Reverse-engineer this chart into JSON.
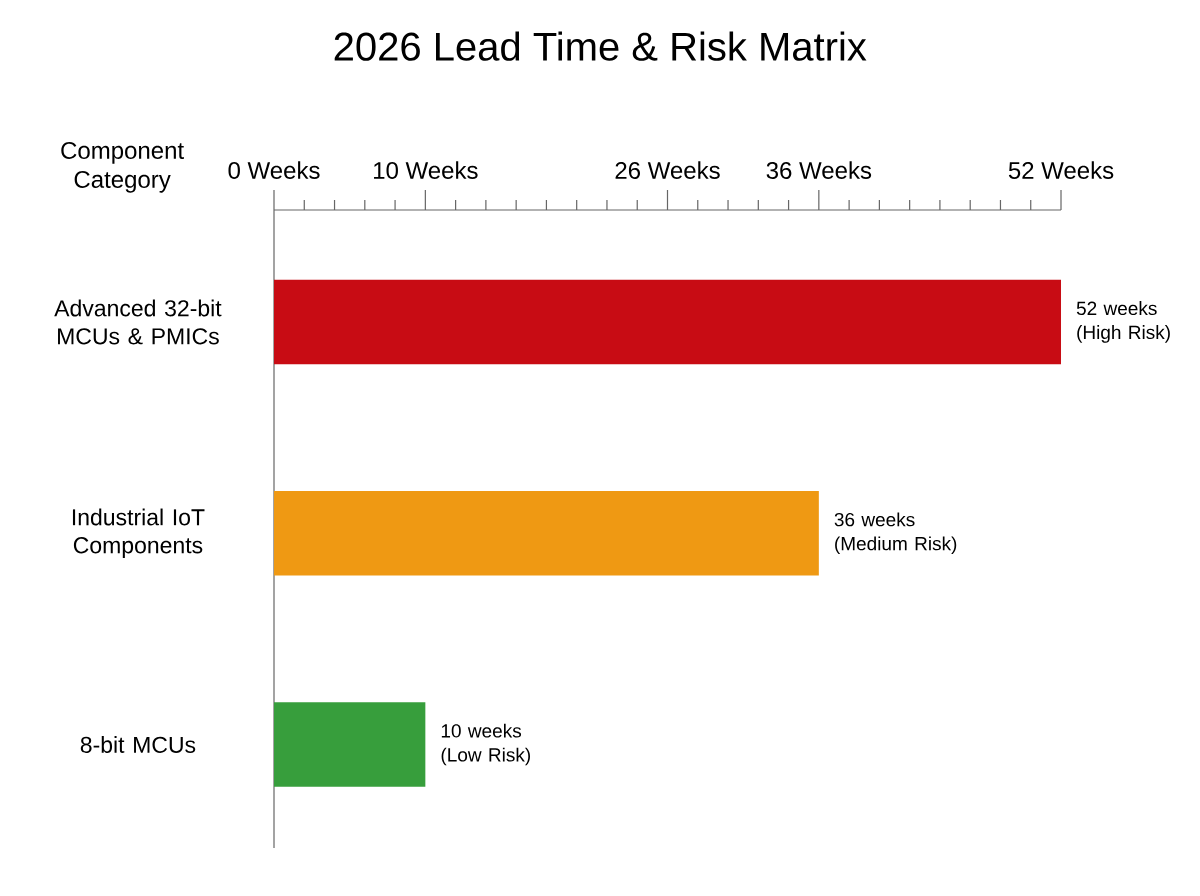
{
  "chart_data": {
    "type": "bar",
    "orientation": "horizontal",
    "title": "2026 Lead Time & Risk Matrix",
    "ylabel": "Component Category",
    "categories": [
      "Advanced 32-bit MCUs & PMICs",
      "Industrial IoT Components",
      "8-bit MCUs"
    ],
    "values": [
      52,
      36,
      10
    ],
    "colors": [
      "#c80c14",
      "#ef9913",
      "#379e3c"
    ],
    "value_labels": [
      "52 weeks (High Risk)",
      "36 weeks (Medium Risk)",
      "10 weeks (Low Risk)"
    ],
    "xlim": [
      0,
      52
    ],
    "xticks": [
      {
        "value": 0,
        "label": "0 Weeks"
      },
      {
        "value": 2,
        "label": null
      },
      {
        "value": 4,
        "label": null
      },
      {
        "value": 6,
        "label": null
      },
      {
        "value": 8,
        "label": null
      },
      {
        "value": 10,
        "label": "10 Weeks"
      },
      {
        "value": 12,
        "label": null
      },
      {
        "value": 14,
        "label": null
      },
      {
        "value": 16,
        "label": null
      },
      {
        "value": 18,
        "label": null
      },
      {
        "value": 20,
        "label": null
      },
      {
        "value": 22,
        "label": null
      },
      {
        "value": 24,
        "label": null
      },
      {
        "value": 26,
        "label": "26 Weeks"
      },
      {
        "value": 28,
        "label": null
      },
      {
        "value": 30,
        "label": null
      },
      {
        "value": 32,
        "label": null
      },
      {
        "value": 34,
        "label": null
      },
      {
        "value": 36,
        "label": "36 Weeks"
      },
      {
        "value": 38,
        "label": null
      },
      {
        "value": 40,
        "label": null
      },
      {
        "value": 42,
        "label": null
      },
      {
        "value": 44,
        "label": null
      },
      {
        "value": 46,
        "label": null
      },
      {
        "value": 48,
        "label": null
      },
      {
        "value": 50,
        "label": null
      },
      {
        "value": 52,
        "label": "52 Weeks"
      }
    ]
  }
}
